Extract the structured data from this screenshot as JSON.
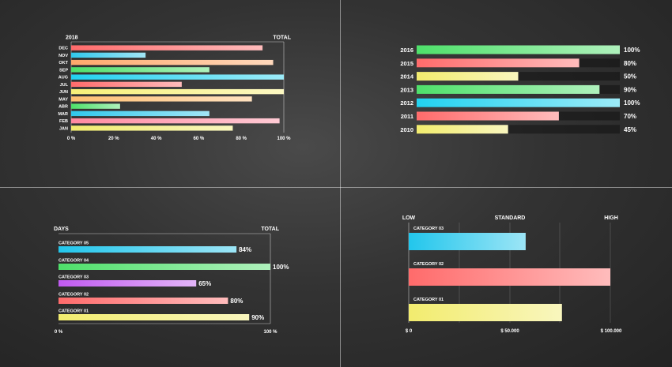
{
  "chart_data": [
    {
      "type": "bar",
      "orientation": "horizontal",
      "title_left": "2018",
      "title_right": "TOTAL",
      "categories": [
        "DEC",
        "NOV",
        "OKT",
        "SEP",
        "AUG",
        "JUL",
        "JUN",
        "MAY",
        "ABR",
        "MAR",
        "FEB",
        "JAN"
      ],
      "values": [
        90,
        35,
        95,
        65,
        100,
        52,
        100,
        85,
        23,
        65,
        98,
        76
      ],
      "xticks": [
        "0 %",
        "20 %",
        "40 %",
        "60 %",
        "80 %",
        "100 %"
      ],
      "xlim": [
        0,
        100
      ],
      "colors": [
        "#ff6b6b",
        "#30c8ec",
        "#ffa96b",
        "#4ee06a",
        "#22d2f0",
        "#ff6b6b",
        "#f8f078",
        "#ffbf72",
        "#4ee06a",
        "#30c8ec",
        "#ff8aa0",
        "#f2ec6e"
      ]
    },
    {
      "type": "bar",
      "orientation": "horizontal",
      "categories": [
        "2016",
        "2015",
        "2014",
        "2013",
        "2012",
        "2011",
        "2010"
      ],
      "values": [
        100,
        80,
        50,
        90,
        100,
        70,
        45
      ],
      "value_labels": [
        "100%",
        "80%",
        "50%",
        "90%",
        "100%",
        "70%",
        "45%"
      ],
      "xlim": [
        0,
        100
      ],
      "colors": [
        "#4ee06a",
        "#ff6b6b",
        "#f2ec6e",
        "#4ee06a",
        "#22d2f0",
        "#ff6b6b",
        "#f2ec6e"
      ]
    },
    {
      "type": "bar",
      "orientation": "horizontal",
      "title_left": "DAYS",
      "title_right": "TOTAL",
      "categories": [
        "CATEGORY 05",
        "CATEGORY 04",
        "CATEGORY 03",
        "CATEGORY 02",
        "CATEGORY 01"
      ],
      "values": [
        84,
        100,
        65,
        80,
        90
      ],
      "value_labels": [
        "84%",
        "100%",
        "65%",
        "80%",
        "90%"
      ],
      "xticks": [
        "0 %",
        "100 %"
      ],
      "xlim": [
        0,
        100
      ],
      "colors": [
        "#22c6ec",
        "#4ee06a",
        "#c05af0",
        "#ff6b6b",
        "#f2ec6e"
      ]
    },
    {
      "type": "bar",
      "orientation": "horizontal",
      "top_labels": [
        "LOW",
        "STANDARD",
        "HIGH"
      ],
      "categories": [
        "CATEGORY 03",
        "CATEGORY 02",
        "CATEGORY 01"
      ],
      "values": [
        58000,
        100000,
        76000
      ],
      "xticks": [
        "$ 0",
        "$ 50.000",
        "$ 100.000"
      ],
      "xlim": [
        0,
        100000
      ],
      "colors": [
        "#22c6ec",
        "#ff6b6b",
        "#f2ec6e"
      ]
    }
  ]
}
